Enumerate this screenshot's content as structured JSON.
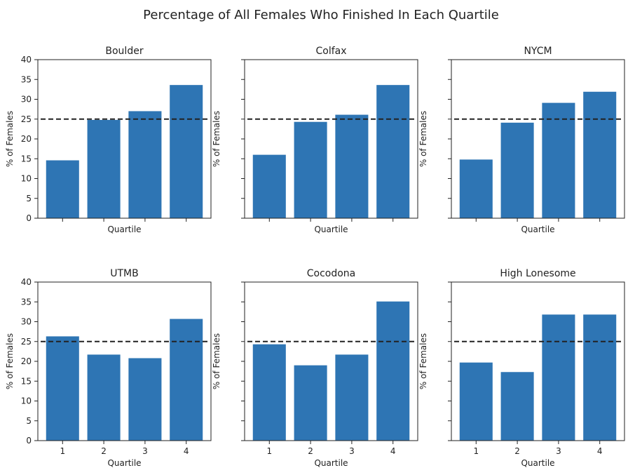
{
  "figure": {
    "title": "Percentage of All Females Who Finished In Each Quartile"
  },
  "chart_data": [
    {
      "type": "bar",
      "title": "Boulder",
      "categories": [
        "1",
        "2",
        "3",
        "4"
      ],
      "values": [
        14.6,
        24.8,
        27.0,
        33.6
      ],
      "xlabel": "Quartile",
      "ylabel": "% of Females",
      "ylim": [
        0,
        40
      ],
      "yticks": [
        "0",
        "5",
        "10",
        "15",
        "20",
        "25",
        "30",
        "35",
        "40"
      ],
      "reference_line": 25,
      "color": "#2e75b4"
    },
    {
      "type": "bar",
      "title": "Colfax",
      "categories": [
        "1",
        "2",
        "3",
        "4"
      ],
      "values": [
        16.0,
        24.3,
        26.1,
        33.6
      ],
      "xlabel": "Quartile",
      "ylabel": "% of Females",
      "ylim": [
        0,
        40
      ],
      "reference_line": 25,
      "color": "#2e75b4"
    },
    {
      "type": "bar",
      "title": "NYCM",
      "categories": [
        "1",
        "2",
        "3",
        "4"
      ],
      "values": [
        14.8,
        24.1,
        29.1,
        31.9
      ],
      "xlabel": "Quartile",
      "ylabel": "% of Females",
      "ylim": [
        0,
        40
      ],
      "reference_line": 25,
      "color": "#2e75b4"
    },
    {
      "type": "bar",
      "title": "UTMB",
      "categories": [
        "1",
        "2",
        "3",
        "4"
      ],
      "values": [
        26.3,
        21.7,
        20.8,
        30.7
      ],
      "xlabel": "Quartile",
      "ylabel": "% of Females",
      "ylim": [
        0,
        40
      ],
      "yticks": [
        "0",
        "5",
        "10",
        "15",
        "20",
        "25",
        "30",
        "35",
        "40"
      ],
      "xticks": [
        "1",
        "2",
        "3",
        "4"
      ],
      "reference_line": 25,
      "color": "#2e75b4"
    },
    {
      "type": "bar",
      "title": "Cocodona",
      "categories": [
        "1",
        "2",
        "3",
        "4"
      ],
      "values": [
        24.3,
        19.0,
        21.7,
        35.1
      ],
      "xlabel": "Quartile",
      "ylabel": "% of Females",
      "ylim": [
        0,
        40
      ],
      "xticks": [
        "1",
        "2",
        "3",
        "4"
      ],
      "reference_line": 25,
      "color": "#2e75b4"
    },
    {
      "type": "bar",
      "title": "High Lonesome",
      "categories": [
        "1",
        "2",
        "3",
        "4"
      ],
      "values": [
        19.7,
        17.3,
        31.8,
        31.8
      ],
      "xlabel": "Quartile",
      "ylabel": "% of Females",
      "ylim": [
        0,
        40
      ],
      "xticks": [
        "1",
        "2",
        "3",
        "4"
      ],
      "reference_line": 25,
      "color": "#2e75b4"
    }
  ]
}
